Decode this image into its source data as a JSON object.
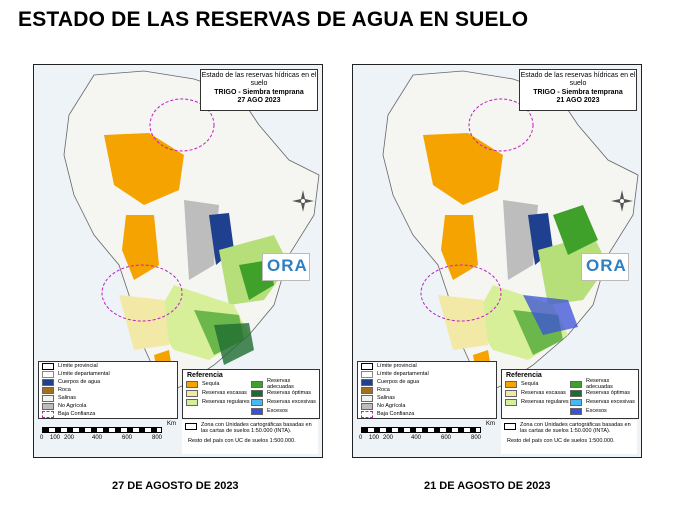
{
  "page_title": "ESTADO DE LAS RESERVAS DE AGUA EN SUELO",
  "maps": [
    {
      "info_title": "Estado de las reservas hídricas en el suelo",
      "info_subtitle": "TRIGO - Siembra temprana",
      "info_date": "27 AGO 2023",
      "caption": "27 DE AGOSTO DE 2023"
    },
    {
      "info_title": "Estado de las reservas hídricas en el suelo",
      "info_subtitle": "TRIGO - Siembra temprana",
      "info_date": "21 AGO 2023",
      "caption": "21 DE AGOSTO DE 2023"
    }
  ],
  "logo_text": "ORA",
  "base_legend": [
    {
      "label": "Límite provincial",
      "color": "#ffffff"
    },
    {
      "label": "Límite departamental",
      "color": "#ffffff"
    },
    {
      "label": "Cuerpos de agua",
      "color": "#1f3f8f"
    },
    {
      "label": "Roca",
      "color": "#a0701a"
    },
    {
      "label": "Salinas",
      "color": "#f2f2f2"
    },
    {
      "label": "No Agrícola",
      "color": "#bdbdbd"
    },
    {
      "label": "Baja Confianza",
      "color": "#ffffff"
    }
  ],
  "reference": {
    "title": "Referencia",
    "items": [
      {
        "label": "Sequía",
        "color": "#f5a300"
      },
      {
        "label": "Reservas adecuadas",
        "color": "#3fa02a"
      },
      {
        "label": "Reservas escasas",
        "color": "#f3e9a6"
      },
      {
        "label": "Reservas óptimas",
        "color": "#1e6b2e"
      },
      {
        "label": "Reservas regulares",
        "color": "#d8ef9a"
      },
      {
        "label": "Reservas excesivas",
        "color": "#48b8f0"
      },
      {
        "label": "",
        "color": ""
      },
      {
        "label": "Excesos",
        "color": "#3a50d8"
      }
    ]
  },
  "scale": {
    "unit": "Km",
    "ticks": [
      "0",
      "100",
      "200",
      "400",
      "600",
      "800"
    ]
  },
  "notes": {
    "note1": "Zona con Unidades cartográficas basadas en las cartas de suelos 1:50.000 (INTA).",
    "note2": "Resto del país con UC de suelos 1:500.000."
  }
}
